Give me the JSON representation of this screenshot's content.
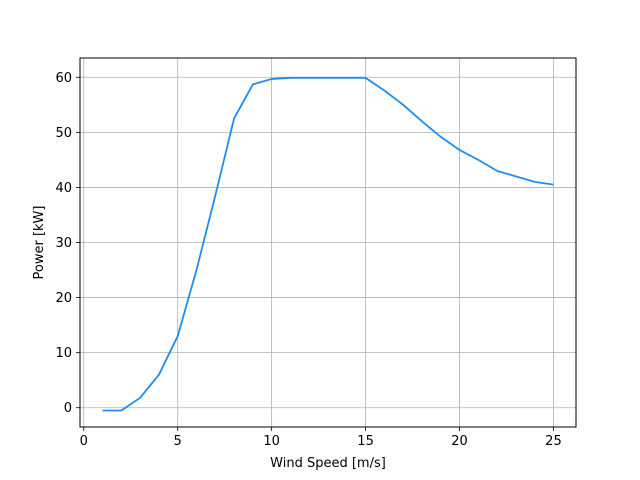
{
  "chart_data": {
    "type": "line",
    "title": "",
    "xlabel": "Wind Speed [m/s]",
    "ylabel": "Power [kW]",
    "xlim": [
      -0.2,
      26.2
    ],
    "ylim": [
      -3.5,
      63.5
    ],
    "xticks": [
      0,
      5,
      10,
      15,
      20,
      25
    ],
    "yticks": [
      0,
      10,
      20,
      30,
      40,
      50,
      60
    ],
    "grid": true,
    "legend": "none",
    "series": [
      {
        "color": "#1f8ceb",
        "x": [
          1,
          2,
          3,
          4,
          5,
          6,
          7,
          8,
          9,
          10,
          11,
          12,
          13,
          14,
          15,
          16,
          17,
          18,
          19,
          20,
          21,
          22,
          23,
          24,
          25
        ],
        "y": [
          -0.5,
          -0.5,
          1.8,
          6.0,
          13.0,
          25.0,
          38.5,
          52.5,
          58.7,
          59.7,
          59.9,
          59.9,
          59.9,
          59.9,
          59.9,
          57.6,
          55.0,
          52.0,
          49.2,
          46.8,
          45.0,
          43.0,
          42.0,
          41.0,
          40.5
        ]
      }
    ]
  }
}
